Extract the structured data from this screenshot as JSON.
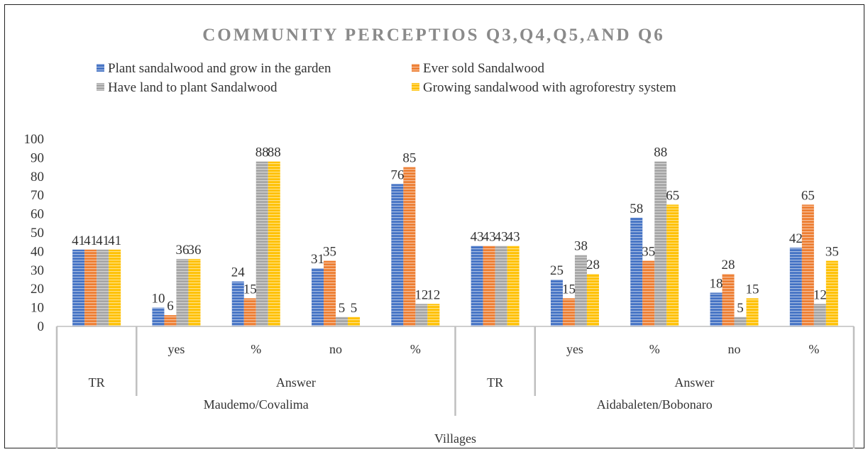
{
  "chart_data": {
    "type": "bar",
    "title": "COMMUNITY PERCEPTIOS Q3,Q4,Q5,AND Q6",
    "xlabel": "Villages",
    "ylabel": "",
    "ylim": [
      0,
      100
    ],
    "yticks": [
      0,
      10,
      20,
      30,
      40,
      50,
      60,
      70,
      80,
      90,
      100
    ],
    "legend_position": "top",
    "grid": false,
    "categories": [
      {
        "label": "",
        "group": "TR",
        "village": "Maudemo/Covalima"
      },
      {
        "label": "yes",
        "group": "Answer",
        "village": "Maudemo/Covalima"
      },
      {
        "label": "%",
        "group": "Answer",
        "village": "Maudemo/Covalima"
      },
      {
        "label": "no",
        "group": "Answer",
        "village": "Maudemo/Covalima"
      },
      {
        "label": "%",
        "group": "Answer",
        "village": "Maudemo/Covalima"
      },
      {
        "label": "",
        "group": "TR",
        "village": "Aidabaleten/Bobonaro"
      },
      {
        "label": "yes",
        "group": "Answer",
        "village": "Aidabaleten/Bobonaro"
      },
      {
        "label": "%",
        "group": "Answer",
        "village": "Aidabaleten/Bobonaro"
      },
      {
        "label": "no",
        "group": "Answer",
        "village": "Aidabaleten/Bobonaro"
      },
      {
        "label": "%",
        "group": "Answer",
        "village": "Aidabaleten/Bobonaro"
      }
    ],
    "group_labels": [
      {
        "text": "TR",
        "span": [
          0,
          1
        ]
      },
      {
        "text": "Answer",
        "span": [
          1,
          5
        ]
      },
      {
        "text": "TR",
        "span": [
          5,
          6
        ]
      },
      {
        "text": "Answer",
        "span": [
          6,
          10
        ]
      }
    ],
    "village_labels": [
      {
        "text": "Maudemo/Covalima",
        "span": [
          0,
          5
        ]
      },
      {
        "text": "Aidabaleten/Bobonaro",
        "span": [
          5,
          10
        ]
      }
    ],
    "series": [
      {
        "name": "Plant sandalwood and grow in the garden",
        "color": "#4472C4",
        "values": [
          41,
          10,
          24,
          31,
          76,
          43,
          25,
          58,
          18,
          42
        ]
      },
      {
        "name": "Ever sold Sandalwood",
        "color": "#ED7D31",
        "values": [
          41,
          6,
          15,
          35,
          85,
          43,
          15,
          35,
          28,
          65
        ]
      },
      {
        "name": "Have land to plant Sandalwood",
        "color": "#A5A5A5",
        "values": [
          41,
          36,
          88,
          5,
          12,
          43,
          38,
          88,
          5,
          12
        ]
      },
      {
        "name": "Growing sandalwood with agroforestry system",
        "color": "#FFC000",
        "values": [
          41,
          36,
          88,
          5,
          12,
          43,
          28,
          65,
          15,
          35
        ]
      }
    ]
  }
}
